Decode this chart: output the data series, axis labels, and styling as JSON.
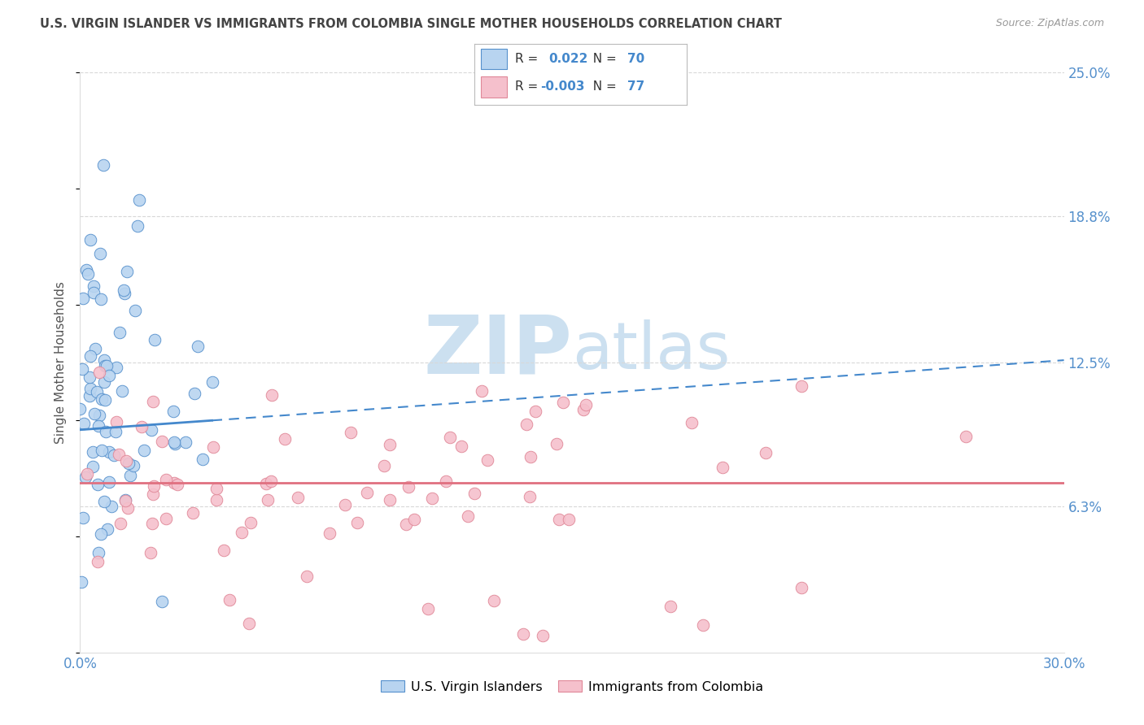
{
  "title": "U.S. VIRGIN ISLANDER VS IMMIGRANTS FROM COLOMBIA SINGLE MOTHER HOUSEHOLDS CORRELATION CHART",
  "source": "Source: ZipAtlas.com",
  "ylabel": "Single Mother Households",
  "xlim": [
    0.0,
    0.3
  ],
  "ylim": [
    0.0,
    0.25
  ],
  "ytick_labels": [
    "6.3%",
    "12.5%",
    "18.8%",
    "25.0%"
  ],
  "ytick_values": [
    0.063,
    0.125,
    0.188,
    0.25
  ],
  "legend1_R": "0.022",
  "legend1_N": "70",
  "legend2_R": "-0.003",
  "legend2_N": "77",
  "blue_fill": "#b8d4f0",
  "blue_edge": "#5590cc",
  "blue_line": "#4488cc",
  "pink_fill": "#f5c0cc",
  "pink_edge": "#e08898",
  "pink_line": "#e07080",
  "grid_color": "#d8d8d8",
  "tick_color": "#5590cc",
  "title_color": "#444444",
  "watermark_color": "#cce0f0",
  "bg_color": "#ffffff"
}
